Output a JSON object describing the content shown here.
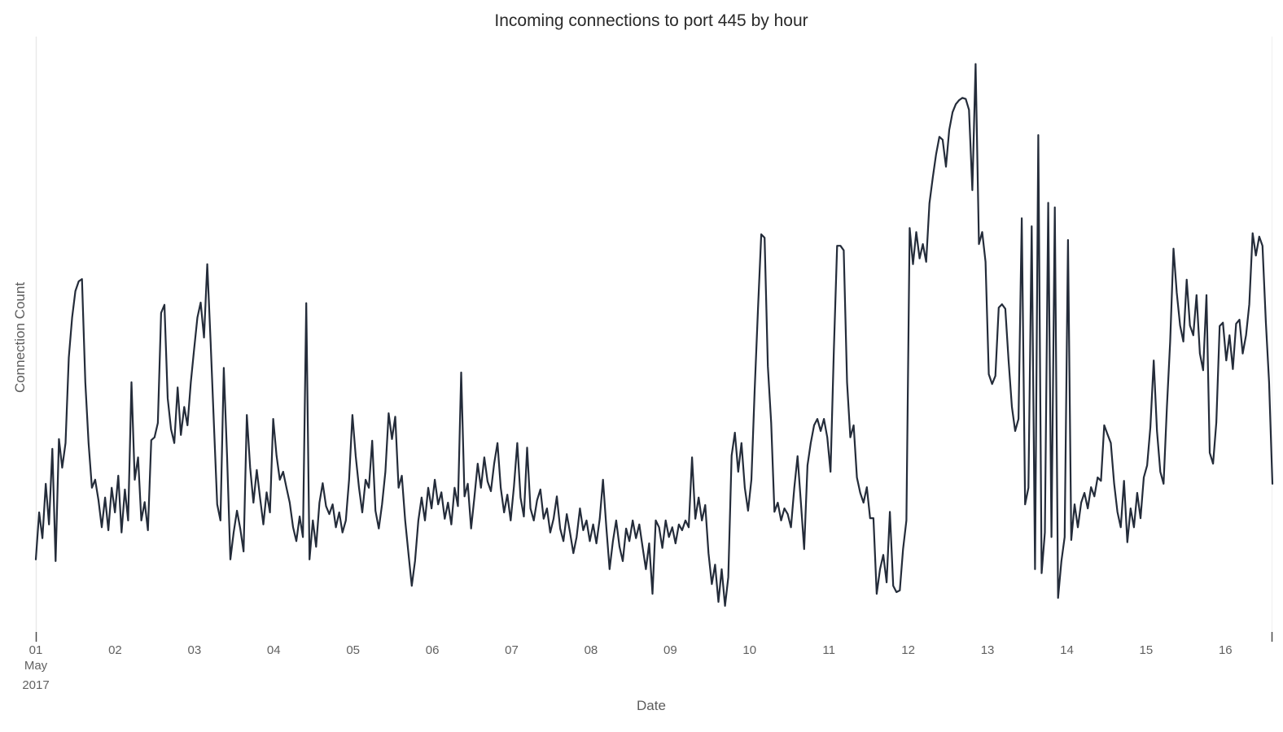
{
  "chart_data": {
    "type": "line",
    "title": "Incoming connections to port 445 by hour",
    "xlabel": "Date",
    "ylabel": "Connection Count",
    "series_name": "incoming-connections-port-445",
    "line_color": "#242c3a",
    "line_width": 2.2,
    "background_color": "#ffffff",
    "axis_line_color": "#e9e9e9",
    "tick_mark_color": "#4a4a4a",
    "tick_label_color": "#616161",
    "grid": false,
    "legend_position": "none",
    "y_axis_tick_labels_visible": false,
    "ylim": [
      0,
      105
    ],
    "x_start": "2017-05-01 00:00",
    "x_interval_hours": 1,
    "x_tick_labels": [
      "01",
      "02",
      "03",
      "04",
      "05",
      "06",
      "07",
      "08",
      "09",
      "10",
      "11",
      "12",
      "13",
      "14",
      "15",
      "16"
    ],
    "x_tick_sublabels": [
      "May",
      "2017"
    ],
    "values": [
      13.5,
      21.7,
      17.2,
      26.7,
      19.6,
      32.8,
      13.2,
      34.5,
      29.5,
      33.8,
      48.7,
      55.7,
      60.3,
      62.0,
      62.4,
      44.4,
      33.8,
      26.0,
      27.4,
      23.8,
      19.1,
      24.3,
      18.6,
      26.0,
      21.7,
      28.1,
      18.2,
      25.7,
      20.3,
      44.4,
      27.4,
      31.3,
      20.3,
      23.5,
      18.6,
      34.3,
      34.8,
      37.3,
      56.5,
      57.9,
      41.6,
      36.2,
      33.8,
      43.5,
      35.2,
      40.1,
      36.9,
      44.4,
      50.1,
      55.7,
      58.3,
      52.2,
      65.0,
      51.5,
      37.3,
      23.1,
      20.3,
      46.9,
      31.6,
      13.5,
      18.2,
      22.0,
      18.9,
      14.9,
      38.7,
      29.5,
      23.4,
      29.1,
      24.3,
      19.6,
      25.2,
      21.7,
      38.0,
      31.6,
      27.4,
      28.8,
      26.0,
      23.4,
      19.1,
      16.7,
      21.0,
      17.4,
      58.2,
      13.5,
      20.3,
      15.7,
      23.4,
      26.8,
      22.8,
      21.4,
      23.1,
      19.1,
      21.7,
      18.2,
      20.3,
      27.4,
      38.7,
      31.6,
      26.0,
      21.7,
      27.4,
      26.0,
      34.2,
      22.0,
      18.9,
      23.1,
      28.8,
      39.0,
      34.5,
      38.4,
      26.0,
      28.1,
      20.3,
      14.6,
      8.9,
      13.2,
      20.3,
      24.3,
      20.3,
      26.0,
      22.4,
      27.4,
      23.1,
      25.2,
      20.6,
      23.4,
      19.6,
      26.0,
      22.8,
      46.1,
      24.5,
      26.7,
      18.9,
      24.3,
      30.2,
      26.0,
      31.3,
      27.1,
      25.4,
      30.2,
      33.8,
      26.0,
      21.7,
      24.8,
      20.3,
      26.2,
      33.8,
      24.3,
      21.0,
      33.0,
      22.4,
      20.3,
      23.8,
      25.7,
      20.6,
      22.4,
      18.2,
      20.6,
      24.5,
      18.9,
      16.7,
      21.4,
      18.2,
      14.6,
      17.4,
      22.4,
      18.6,
      20.3,
      16.7,
      19.6,
      16.3,
      20.6,
      27.4,
      19.1,
      11.8,
      16.7,
      20.3,
      15.7,
      13.2,
      18.9,
      16.7,
      20.3,
      17.2,
      19.6,
      15.7,
      11.8,
      16.3,
      7.5,
      20.3,
      19.1,
      15.5,
      20.3,
      17.4,
      19.1,
      16.3,
      19.6,
      18.6,
      20.3,
      19.1,
      31.3,
      20.6,
      24.3,
      20.3,
      23.0,
      14.6,
      9.2,
      12.6,
      6.1,
      11.8,
      5.4,
      10.4,
      31.6,
      35.6,
      28.8,
      33.8,
      26.0,
      22.0,
      27.4,
      43.0,
      57.2,
      70.2,
      69.6,
      47.2,
      37.3,
      21.8,
      23.4,
      20.3,
      22.4,
      21.4,
      19.1,
      26.0,
      31.5,
      23.4,
      15.3,
      29.9,
      33.8,
      36.9,
      38.0,
      35.9,
      38.0,
      34.8,
      28.8,
      50.1,
      68.2,
      68.2,
      67.4,
      44.4,
      34.8,
      36.9,
      27.8,
      25.1,
      23.4,
      26.1,
      20.7,
      20.7,
      7.5,
      11.8,
      14.3,
      9.5,
      21.8,
      8.9,
      7.8,
      8.1,
      15.3,
      20.3,
      71.3,
      65.0,
      70.6,
      66.0,
      68.5,
      65.4,
      75.6,
      80.1,
      84.1,
      87.2,
      86.7,
      82.0,
      88.4,
      91.5,
      92.9,
      93.6,
      94.0,
      93.8,
      91.9,
      77.9,
      99.9,
      68.5,
      70.6,
      65.4,
      45.8,
      44.1,
      45.5,
      57.4,
      58.0,
      57.2,
      48.2,
      40.1,
      35.9,
      38.0,
      73.0,
      23.1,
      26.0,
      71.6,
      11.8,
      87.5,
      11.1,
      18.2,
      75.7,
      17.4,
      74.9,
      6.8,
      13.2,
      17.4,
      69.2,
      16.9,
      23.1,
      19.1,
      23.4,
      25.1,
      22.4,
      26.1,
      24.5,
      27.8,
      27.2,
      36.9,
      35.3,
      33.8,
      26.7,
      21.8,
      19.1,
      27.2,
      16.5,
      22.4,
      19.1,
      25.1,
      20.7,
      27.8,
      29.9,
      36.6,
      48.2,
      35.9,
      28.8,
      26.7,
      40.1,
      51.5,
      67.7,
      60.0,
      54.3,
      51.5,
      62.3,
      54.3,
      52.6,
      59.6,
      49.4,
      46.5,
      59.6,
      32.1,
      30.2,
      37.4,
      54.2,
      54.8,
      48.2,
      52.6,
      46.7,
      54.6,
      55.3,
      49.4,
      52.6,
      58.0,
      70.4,
      66.5,
      69.8,
      68.2,
      55.0,
      44.4,
      26.7
    ]
  }
}
